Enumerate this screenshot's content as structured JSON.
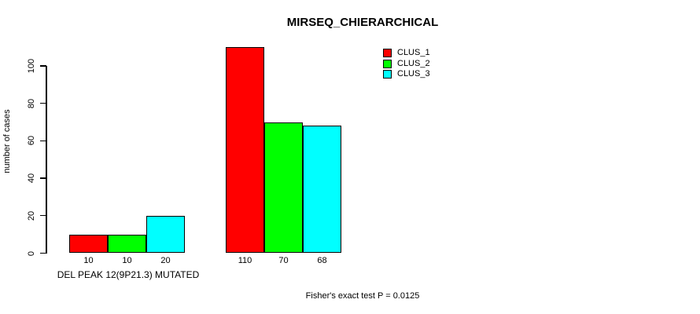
{
  "chart_data": {
    "type": "bar",
    "title": "MIRSEQ_CHIERARCHICAL",
    "ylabel": "number of cases",
    "xlabel": "DEL PEAK 12(9P21.3) MUTATED",
    "ylim": [
      0,
      110
    ],
    "yticks": [
      0,
      20,
      40,
      60,
      80,
      100
    ],
    "grid": false,
    "group_count": 2,
    "series": [
      {
        "name": "CLUS_1",
        "color": "#ff0000",
        "values": [
          10,
          110
        ]
      },
      {
        "name": "CLUS_2",
        "color": "#00ff00",
        "values": [
          10,
          70
        ]
      },
      {
        "name": "CLUS_3",
        "color": "#00ffff",
        "values": [
          20,
          68
        ]
      }
    ],
    "bar_value_labels": [
      [
        10,
        10,
        20
      ],
      [
        110,
        70,
        68
      ]
    ],
    "legend": {
      "position": "top-right",
      "entries": [
        {
          "label": "CLUS_1",
          "color": "#ff0000"
        },
        {
          "label": "CLUS_2",
          "color": "#00ff00"
        },
        {
          "label": "CLUS_3",
          "color": "#00ffff"
        }
      ]
    },
    "annotation": "Fisher's exact test P = 0.0125"
  }
}
